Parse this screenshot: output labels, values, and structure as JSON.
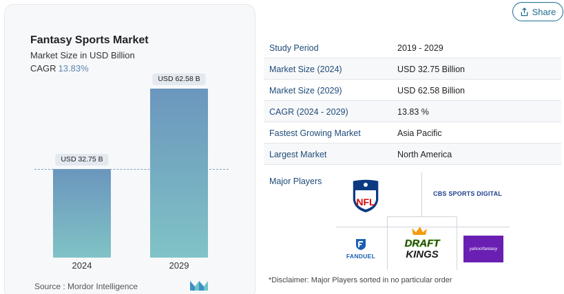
{
  "share": {
    "label": "Share",
    "icon": "share-icon"
  },
  "chart_card": {
    "title": "Fantasy Sports Market",
    "subtitle": "Market Size in USD Billion",
    "cagr_label": "CAGR",
    "cagr_value": "13.83%",
    "source": "Source :  Mordor Intelligence"
  },
  "chart_data": {
    "type": "bar",
    "categories": [
      "2024",
      "2029"
    ],
    "values": [
      32.75,
      62.58
    ],
    "data_labels": [
      "USD 32.75 B",
      "USD 62.58 B"
    ],
    "title": "Fantasy Sports Market",
    "subtitle": "Market Size in USD Billion",
    "ylim": [
      0,
      70
    ],
    "grid": false,
    "colors": [
      "#6b96bd",
      "#80c3c6"
    ]
  },
  "table": [
    {
      "label": "Study Period",
      "value": "2019 - 2029"
    },
    {
      "label": "Market Size (2024)",
      "value": "USD 32.75 Billion"
    },
    {
      "label": "Market Size (2029)",
      "value": "USD 62.58 Billion"
    },
    {
      "label": "CAGR (2024 - 2029)",
      "value": "13.83 %"
    },
    {
      "label": "Fastest Growing Market",
      "value": "Asia Pacific"
    },
    {
      "label": "Largest Market",
      "value": "North America"
    }
  ],
  "players": {
    "label": "Major Players",
    "nfl": "NFL",
    "cbs": "CBS SPORTS DIGITAL",
    "fanduel": "FANDUEL",
    "draftkings_top": "DRAFT",
    "draftkings_bottom": "KINGS",
    "yahoo": "yahoo!fantasy"
  },
  "disclaimer": "*Disclaimer: Major Players sorted in no particular order"
}
